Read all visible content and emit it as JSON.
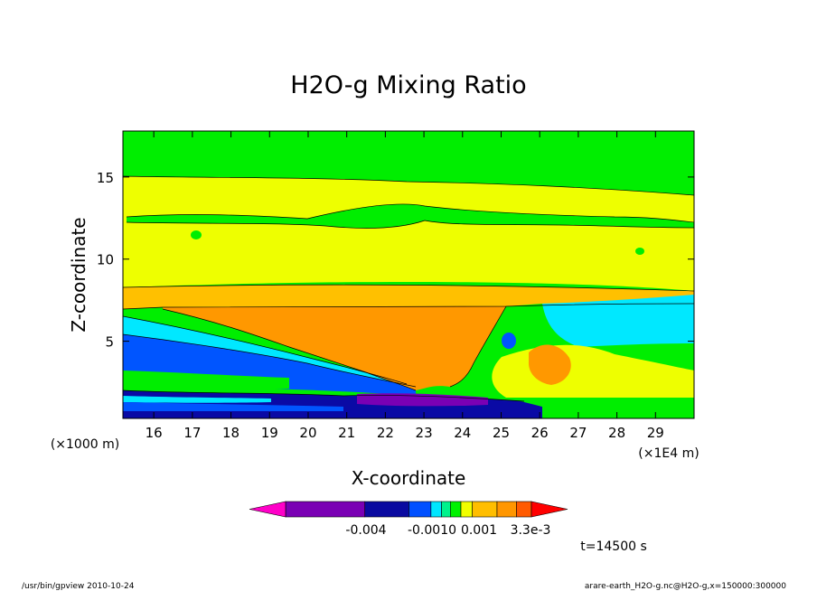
{
  "chart_data": {
    "type": "heatmap",
    "title": "H2O-g Mixing Ratio",
    "xlabel": "X-coordinate",
    "ylabel": "Z-coordinate",
    "x_unit": "(×1E4 m)",
    "y_unit": "(×1000 m)",
    "xlim": [
      15.2,
      30.0
    ],
    "ylim": [
      0.3,
      17.8
    ],
    "x_ticks": [
      16,
      17,
      18,
      19,
      20,
      21,
      22,
      23,
      24,
      25,
      26,
      27,
      28,
      29
    ],
    "y_ticks": [
      5,
      10,
      15
    ],
    "colorbar": {
      "colors": [
        "#ff00c8",
        "#7a00b4",
        "#0a0aa0",
        "#0050ff",
        "#00e6ff",
        "#00f28c",
        "#00f200",
        "#f0ff00",
        "#ffbe00",
        "#ff9600",
        "#ff5a00",
        "#ff0000"
      ],
      "tick_labels": [
        "-0.004",
        "-0.0010",
        "0.001",
        "3.3e-3"
      ]
    },
    "field_colors": {
      "c1": "#00ee00",
      "c2": "#eeff00",
      "c3": "#ffc000",
      "c4": "#ff9800",
      "c5": "#00e8ff",
      "c6": "#00f28c",
      "c7": "#0055ff",
      "c8": "#0a0aa5",
      "c9": "#7a00b4"
    }
  },
  "annotations": {
    "time": "t=14500 s",
    "footer_left": "/usr/bin/gpview  2010-10-24",
    "footer_right": "arare-earth_H2O-g.nc@H2O-g,x=150000:300000"
  }
}
